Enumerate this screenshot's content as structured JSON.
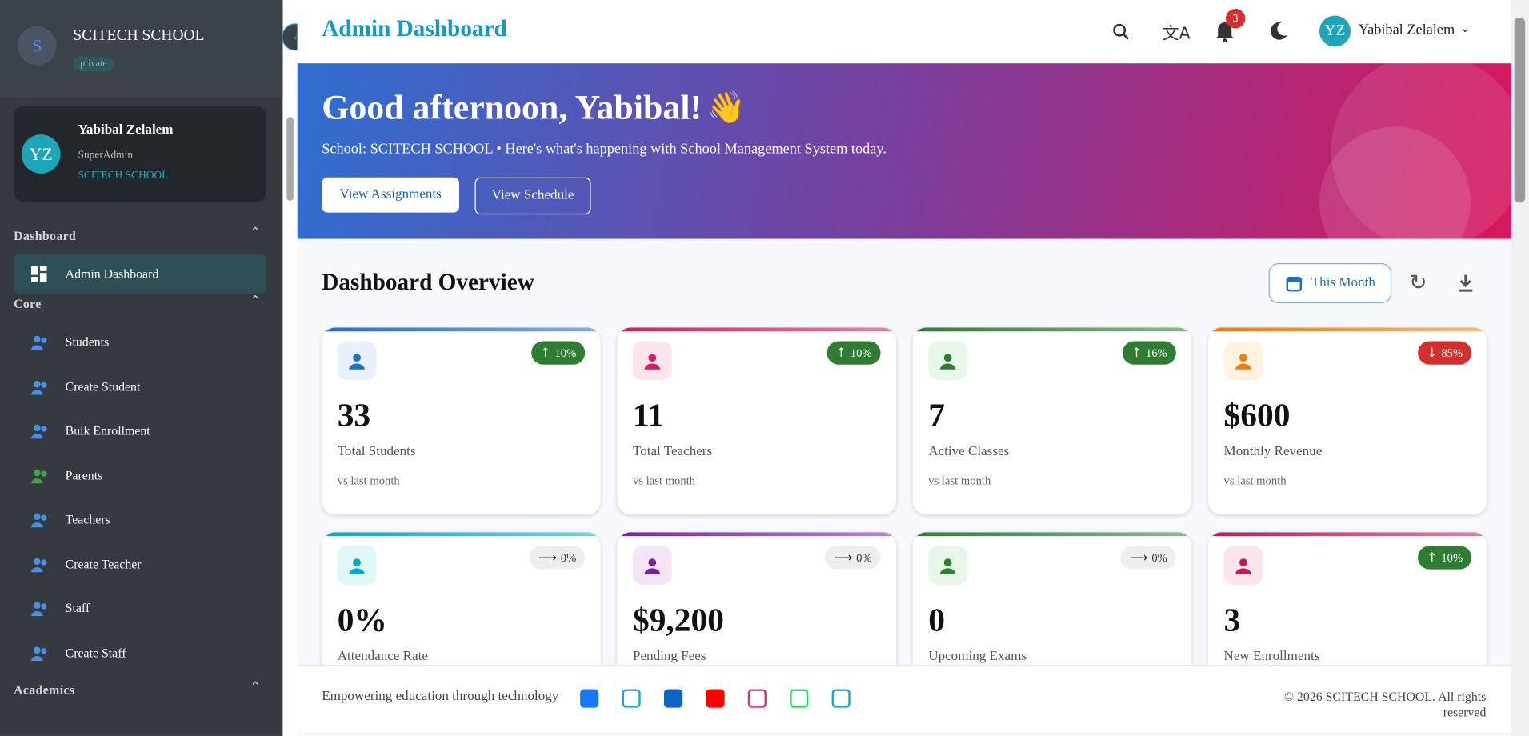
{
  "sidebar": {
    "school_initial": "S",
    "school_name": "SCITECH SCHOOL",
    "school_badge": "private",
    "user": {
      "initials": "YZ",
      "name": "Yabibal Zelalem",
      "role": "SuperAdmin",
      "school": "SCITECH SCHOOL"
    },
    "sections": [
      {
        "title": "Dashboard",
        "items": [
          "Admin Dashboard"
        ]
      },
      {
        "title": "Core",
        "items": [
          "Students",
          "Create Student",
          "Bulk Enrollment",
          "Parents",
          "Teachers",
          "Create Teacher",
          "Staff",
          "Create Staff"
        ]
      },
      {
        "title": "Academics"
      }
    ]
  },
  "header": {
    "title": "Admin Dashboard",
    "notification_count": 3,
    "user_initials": "YZ",
    "user_name": "Yabibal Zelalem"
  },
  "hero": {
    "greeting": "Good afternoon, Yabibal!",
    "emoji": "👋",
    "subtitle": "School: SCITECH SCHOOL • Here's what's happening with School Management System today.",
    "buttons": [
      "View Assignments",
      "View Schedule"
    ]
  },
  "overview": {
    "title": "Dashboard Overview",
    "period": "This Month",
    "cards": [
      {
        "value": "33",
        "label": "Total Students",
        "note": "vs last month",
        "trend": "10%",
        "direction": "up"
      },
      {
        "value": "11",
        "label": "Total Teachers",
        "note": "vs last month",
        "trend": "10%",
        "direction": "up"
      },
      {
        "value": "7",
        "label": "Active Classes",
        "note": "vs last month",
        "trend": "16%",
        "direction": "up"
      },
      {
        "value": "$600",
        "label": "Monthly Revenue",
        "note": "vs last month",
        "trend": "85%",
        "direction": "down"
      },
      {
        "value": "0%",
        "label": "Attendance Rate",
        "trend": "0%",
        "direction": "flat"
      },
      {
        "value": "$9,200",
        "label": "Pending Fees",
        "trend": "0%",
        "direction": "flat"
      },
      {
        "value": "0",
        "label": "Upcoming Exams",
        "trend": "0%",
        "direction": "flat"
      },
      {
        "value": "3",
        "label": "New Enrollments",
        "trend": "10%",
        "direction": "up"
      }
    ]
  },
  "footer": {
    "tagline": "Empowering education through technology",
    "copyright": "2026 SCITECH SCHOOL. All rights reserved"
  }
}
